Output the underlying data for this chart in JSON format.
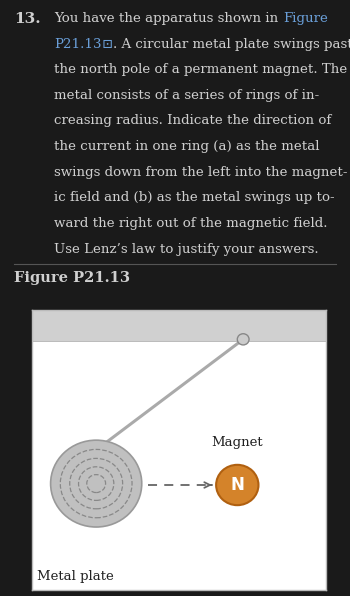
{
  "bg_color": "#1a1a1a",
  "text_color": "#d0d0d0",
  "link_color": "#6a9fd8",
  "problem_number": "13.",
  "figure_label": "Figure P21.13",
  "figure_bg": "#ffffff",
  "figure_border": "#bbbbbb",
  "plate_color": "#c0c0c0",
  "plate_edge_color": "#999999",
  "ring_color": "#888888",
  "rod_color": "#aaaaaa",
  "magnet_color": "#d4832a",
  "magnet_label": "Magnet",
  "magnet_n_label": "N",
  "plate_label": "Metal plate",
  "ceiling_bar_color": "#d0d0d0",
  "divider_color": "#555555",
  "arrow_color": "#666666"
}
